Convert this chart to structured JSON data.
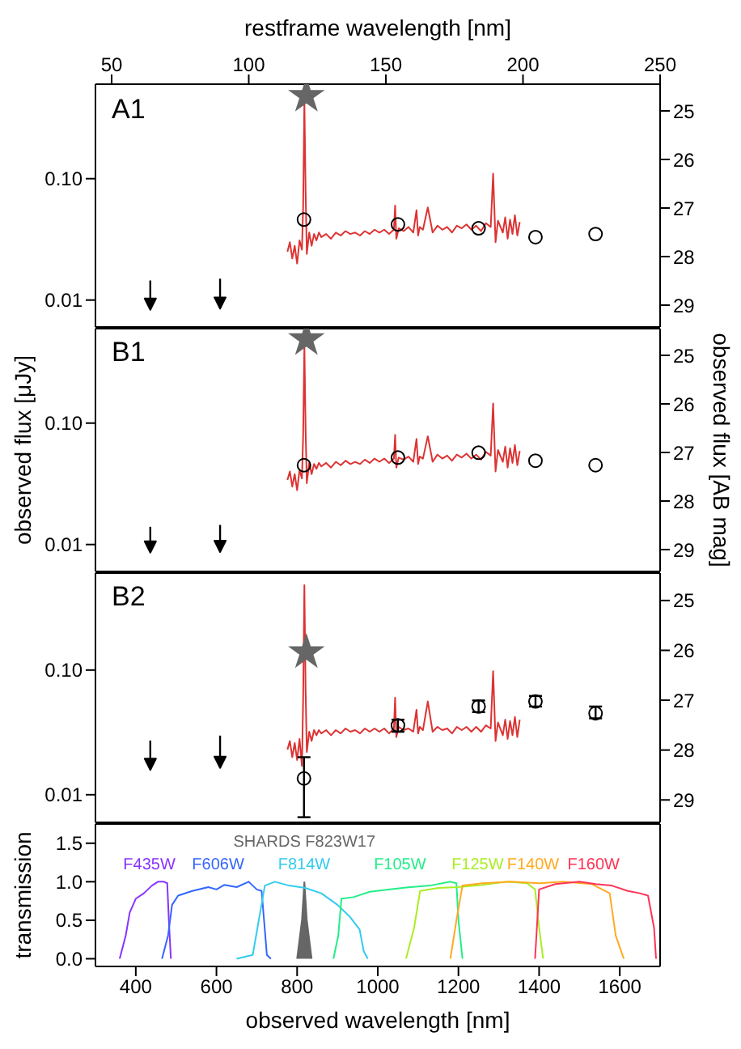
{
  "chart_data": [
    {
      "type": "line",
      "title": "A1",
      "x2label": "restframe wavelength [nm]",
      "xlim": [
        300,
        1700
      ],
      "x2lim": [
        44.1,
        250
      ],
      "x2ticks": [
        50,
        100,
        150,
        200,
        250
      ],
      "ylim": [
        0.006,
        0.6
      ],
      "yticks": [
        0.01,
        {
          "value": 0.1,
          "label": "0.10"
        }
      ],
      "log": "y",
      "y2lim": [
        29.45,
        24.45
      ],
      "y2ticks": [
        25,
        26,
        27,
        28,
        29
      ],
      "series": [
        {
          "color": "#dd3333",
          "x": [
            776,
            782,
            788,
            794,
            800,
            806,
            812,
            815,
            818,
            821,
            824,
            830,
            836,
            842,
            848,
            854,
            860,
            872,
            884,
            896,
            908,
            920,
            932,
            944,
            956,
            968,
            980,
            992,
            1004,
            1016,
            1028,
            1040,
            1043,
            1046,
            1052,
            1064,
            1076,
            1088,
            1096,
            1100,
            1104,
            1112,
            1124,
            1136,
            1148,
            1160,
            1172,
            1184,
            1196,
            1208,
            1220,
            1232,
            1244,
            1256,
            1268,
            1280,
            1286,
            1292,
            1298,
            1310,
            1316,
            1322,
            1328,
            1334,
            1340,
            1346,
            1352
          ],
          "values": [
            0.025,
            0.03,
            0.022,
            0.028,
            0.02,
            0.031,
            0.026,
            0.06,
            0.44,
            0.08,
            0.024,
            0.036,
            0.028,
            0.035,
            0.031,
            0.036,
            0.033,
            0.035,
            0.032,
            0.036,
            0.034,
            0.037,
            0.035,
            0.036,
            0.034,
            0.037,
            0.035,
            0.038,
            0.036,
            0.038,
            0.035,
            0.038,
            0.06,
            0.032,
            0.039,
            0.037,
            0.04,
            0.036,
            0.055,
            0.034,
            0.04,
            0.038,
            0.058,
            0.036,
            0.041,
            0.038,
            0.04,
            0.036,
            0.041,
            0.039,
            0.042,
            0.038,
            0.041,
            0.037,
            0.043,
            0.04,
            0.11,
            0.03,
            0.045,
            0.036,
            0.048,
            0.032,
            0.046,
            0.035,
            0.05,
            0.034,
            0.044
          ]
        },
        {
          "type": "scatter",
          "marker": "circle",
          "color": "#000000",
          "x": [
            817,
            1050,
            1250,
            1391,
            1540
          ],
          "values": [
            0.046,
            0.042,
            0.039,
            0.033,
            0.035
          ]
        },
        {
          "type": "scatter",
          "marker": "star",
          "color": "#666666",
          "x": [
            823
          ],
          "values": [
            0.48
          ]
        },
        {
          "type": "scatter",
          "marker": "triangle",
          "color": "#000000",
          "x": [
            436,
            609
          ],
          "values": [
            0.0094,
            0.0096
          ],
          "errors": [
            [
              0.0094,
              0.0145
            ],
            [
              0.0096,
              0.015
            ]
          ]
        }
      ]
    },
    {
      "type": "line",
      "title": "B1",
      "ylabel": "observed flux [μJy]",
      "y2label": "observed flux [AB mag]",
      "xlim": [
        300,
        1700
      ],
      "ylim": [
        0.006,
        0.6
      ],
      "yticks": [
        0.01,
        {
          "value": 0.1,
          "label": "0.10"
        }
      ],
      "log": "y",
      "y2lim": [
        29.45,
        24.45
      ],
      "y2ticks": [
        25,
        26,
        27,
        28,
        29
      ],
      "series": [
        {
          "color": "#dd3333",
          "x": [
            776,
            782,
            788,
            794,
            800,
            806,
            812,
            815,
            818,
            821,
            824,
            830,
            836,
            842,
            848,
            854,
            860,
            872,
            884,
            896,
            908,
            920,
            932,
            944,
            956,
            968,
            980,
            992,
            1004,
            1016,
            1028,
            1040,
            1043,
            1046,
            1052,
            1064,
            1076,
            1088,
            1096,
            1100,
            1104,
            1112,
            1124,
            1136,
            1148,
            1160,
            1172,
            1184,
            1196,
            1208,
            1220,
            1232,
            1244,
            1256,
            1268,
            1280,
            1286,
            1292,
            1298,
            1310,
            1316,
            1322,
            1328,
            1334,
            1340,
            1346,
            1352
          ],
          "values": [
            0.034,
            0.04,
            0.03,
            0.038,
            0.028,
            0.041,
            0.035,
            0.08,
            0.44,
            0.09,
            0.032,
            0.047,
            0.038,
            0.046,
            0.042,
            0.047,
            0.044,
            0.047,
            0.043,
            0.048,
            0.045,
            0.049,
            0.046,
            0.048,
            0.046,
            0.05,
            0.047,
            0.051,
            0.048,
            0.051,
            0.047,
            0.051,
            0.08,
            0.043,
            0.052,
            0.05,
            0.053,
            0.048,
            0.074,
            0.046,
            0.053,
            0.051,
            0.078,
            0.048,
            0.055,
            0.051,
            0.054,
            0.049,
            0.055,
            0.052,
            0.056,
            0.051,
            0.055,
            0.05,
            0.058,
            0.054,
            0.145,
            0.04,
            0.06,
            0.048,
            0.064,
            0.043,
            0.062,
            0.047,
            0.066,
            0.045,
            0.059
          ]
        },
        {
          "type": "scatter",
          "marker": "circle",
          "color": "#000000",
          "x": [
            817,
            1050,
            1250,
            1391,
            1540
          ],
          "values": [
            0.045,
            0.052,
            0.057,
            0.049,
            0.045
          ]
        },
        {
          "type": "scatter",
          "marker": "star",
          "color": "#666666",
          "x": [
            823
          ],
          "values": [
            0.49
          ]
        },
        {
          "type": "scatter",
          "marker": "triangle",
          "color": "#000000",
          "x": [
            436,
            609
          ],
          "values": [
            0.0097,
            0.0098
          ],
          "errors": [
            [
              0.0097,
              0.014
            ],
            [
              0.0098,
              0.0145
            ]
          ]
        }
      ]
    },
    {
      "type": "line",
      "title": "B2",
      "xlim": [
        300,
        1700
      ],
      "ylim": [
        0.006,
        0.6
      ],
      "yticks": [
        0.01,
        {
          "value": 0.1,
          "label": "0.10"
        }
      ],
      "log": "y",
      "y2lim": [
        29.45,
        24.45
      ],
      "y2ticks": [
        25,
        26,
        27,
        28,
        29
      ],
      "series": [
        {
          "color": "#dd3333",
          "x": [
            776,
            782,
            788,
            794,
            800,
            806,
            812,
            815,
            818,
            821,
            824,
            830,
            836,
            842,
            848,
            854,
            860,
            872,
            884,
            896,
            908,
            920,
            932,
            944,
            956,
            968,
            980,
            992,
            1004,
            1016,
            1028,
            1040,
            1043,
            1046,
            1052,
            1064,
            1076,
            1088,
            1096,
            1100,
            1104,
            1112,
            1124,
            1136,
            1148,
            1160,
            1172,
            1184,
            1196,
            1208,
            1220,
            1232,
            1244,
            1256,
            1268,
            1280,
            1286,
            1292,
            1298,
            1310,
            1316,
            1322,
            1328,
            1334,
            1340,
            1346,
            1352
          ],
          "values": [
            0.023,
            0.027,
            0.02,
            0.026,
            0.019,
            0.028,
            0.017,
            0.06,
            0.48,
            0.07,
            0.022,
            0.032,
            0.027,
            0.033,
            0.03,
            0.033,
            0.031,
            0.033,
            0.03,
            0.033,
            0.031,
            0.034,
            0.032,
            0.033,
            0.031,
            0.034,
            0.032,
            0.034,
            0.032,
            0.034,
            0.031,
            0.034,
            0.06,
            0.029,
            0.035,
            0.033,
            0.034,
            0.032,
            0.048,
            0.031,
            0.035,
            0.033,
            0.056,
            0.032,
            0.035,
            0.033,
            0.034,
            0.031,
            0.035,
            0.033,
            0.035,
            0.032,
            0.035,
            0.032,
            0.036,
            0.034,
            0.098,
            0.027,
            0.038,
            0.03,
            0.04,
            0.028,
            0.039,
            0.03,
            0.042,
            0.029,
            0.04
          ]
        },
        {
          "type": "scatter",
          "marker": "circle",
          "color": "#000000",
          "x": [
            817,
            1050,
            1250,
            1391,
            1540
          ],
          "values": [
            0.0135,
            0.036,
            0.051,
            0.056,
            0.045
          ],
          "errors": [
            [
              0.0066,
              0.02
            ],
            [
              0.032,
              0.04
            ],
            [
              0.046,
              0.057
            ],
            [
              0.051,
              0.062
            ],
            [
              0.041,
              0.051
            ]
          ]
        },
        {
          "type": "scatter",
          "marker": "star",
          "color": "#666666",
          "x": [
            823
          ],
          "values": [
            0.139
          ]
        },
        {
          "type": "scatter",
          "marker": "triangle",
          "color": "#000000",
          "x": [
            436,
            609
          ],
          "values": [
            0.0178,
            0.0185
          ],
          "errors": [
            [
              0.0178,
              0.0272
            ],
            [
              0.0185,
              0.0298
            ]
          ]
        }
      ]
    },
    {
      "type": "line",
      "xlabel": "observed wavelength [nm]",
      "ylabel": "transmission",
      "xlim": [
        300,
        1700
      ],
      "xticks": [
        400,
        600,
        800,
        1000,
        1200,
        1400,
        1600
      ],
      "ylim": [
        -0.1,
        1.75
      ],
      "yticks": [
        {
          "value": 0,
          "label": "0.0"
        },
        0.5,
        {
          "value": 1,
          "label": "1.0"
        },
        1.5
      ],
      "series": [
        {
          "type": "area",
          "name": "SHARDS F823W17",
          "color": "#666666",
          "x": [
            800,
            812,
            818,
            824,
            836
          ],
          "values": [
            0,
            0.5,
            1.0,
            0.5,
            0
          ]
        },
        {
          "name": "F435W",
          "color": "#8833ff",
          "x": [
            360,
            375,
            385,
            400,
            420,
            440,
            455,
            470,
            478,
            482,
            487
          ],
          "values": [
            0,
            0.3,
            0.6,
            0.78,
            0.85,
            0.95,
            1.0,
            1.0,
            0.98,
            0.5,
            0
          ]
        },
        {
          "name": "F606W",
          "color": "#3366ff",
          "x": [
            465,
            480,
            490,
            505,
            540,
            580,
            600,
            620,
            650,
            680,
            700,
            712,
            718,
            725,
            735
          ],
          "values": [
            0,
            0.3,
            0.7,
            0.82,
            0.88,
            0.93,
            0.9,
            0.96,
            0.93,
            1.0,
            0.9,
            0.88,
            0.5,
            0.05,
            0
          ]
        },
        {
          "name": "F814W",
          "color": "#33ccee",
          "x": [
            650,
            690,
            705,
            720,
            745,
            780,
            820,
            860,
            900,
            930,
            955,
            965,
            975
          ],
          "values": [
            0,
            0.05,
            0.5,
            0.95,
            1.0,
            0.95,
            0.92,
            0.85,
            0.7,
            0.55,
            0.38,
            0.1,
            0
          ]
        },
        {
          "name": "F105W",
          "color": "#22ee88",
          "x": [
            890,
            902,
            910,
            940,
            980,
            1030,
            1080,
            1130,
            1180,
            1195,
            1200,
            1210
          ],
          "values": [
            0,
            0.3,
            0.78,
            0.8,
            0.87,
            0.9,
            0.93,
            0.95,
            1.0,
            0.98,
            0.5,
            0
          ]
        },
        {
          "name": "F125W",
          "color": "#aaee22",
          "x": [
            1070,
            1090,
            1105,
            1150,
            1200,
            1260,
            1320,
            1370,
            1390,
            1400,
            1410
          ],
          "values": [
            0,
            0.4,
            0.88,
            0.92,
            0.93,
            0.96,
            1.0,
            0.98,
            0.9,
            0.4,
            0
          ]
        },
        {
          "name": "F140W",
          "color": "#ffaa22",
          "x": [
            1180,
            1195,
            1210,
            1260,
            1330,
            1400,
            1460,
            1530,
            1575,
            1590,
            1610
          ],
          "values": [
            0,
            0.5,
            0.95,
            0.98,
            1.0,
            0.98,
            1.0,
            0.97,
            0.85,
            0.3,
            0
          ]
        },
        {
          "name": "F160W",
          "color": "#ff3355",
          "x": [
            1390,
            1400,
            1440,
            1500,
            1540,
            1580,
            1620,
            1650,
            1670,
            1685,
            1690
          ],
          "values": [
            0,
            0.9,
            0.97,
            1.0,
            0.97,
            0.95,
            0.88,
            0.85,
            0.82,
            0.4,
            0
          ]
        }
      ]
    }
  ]
}
